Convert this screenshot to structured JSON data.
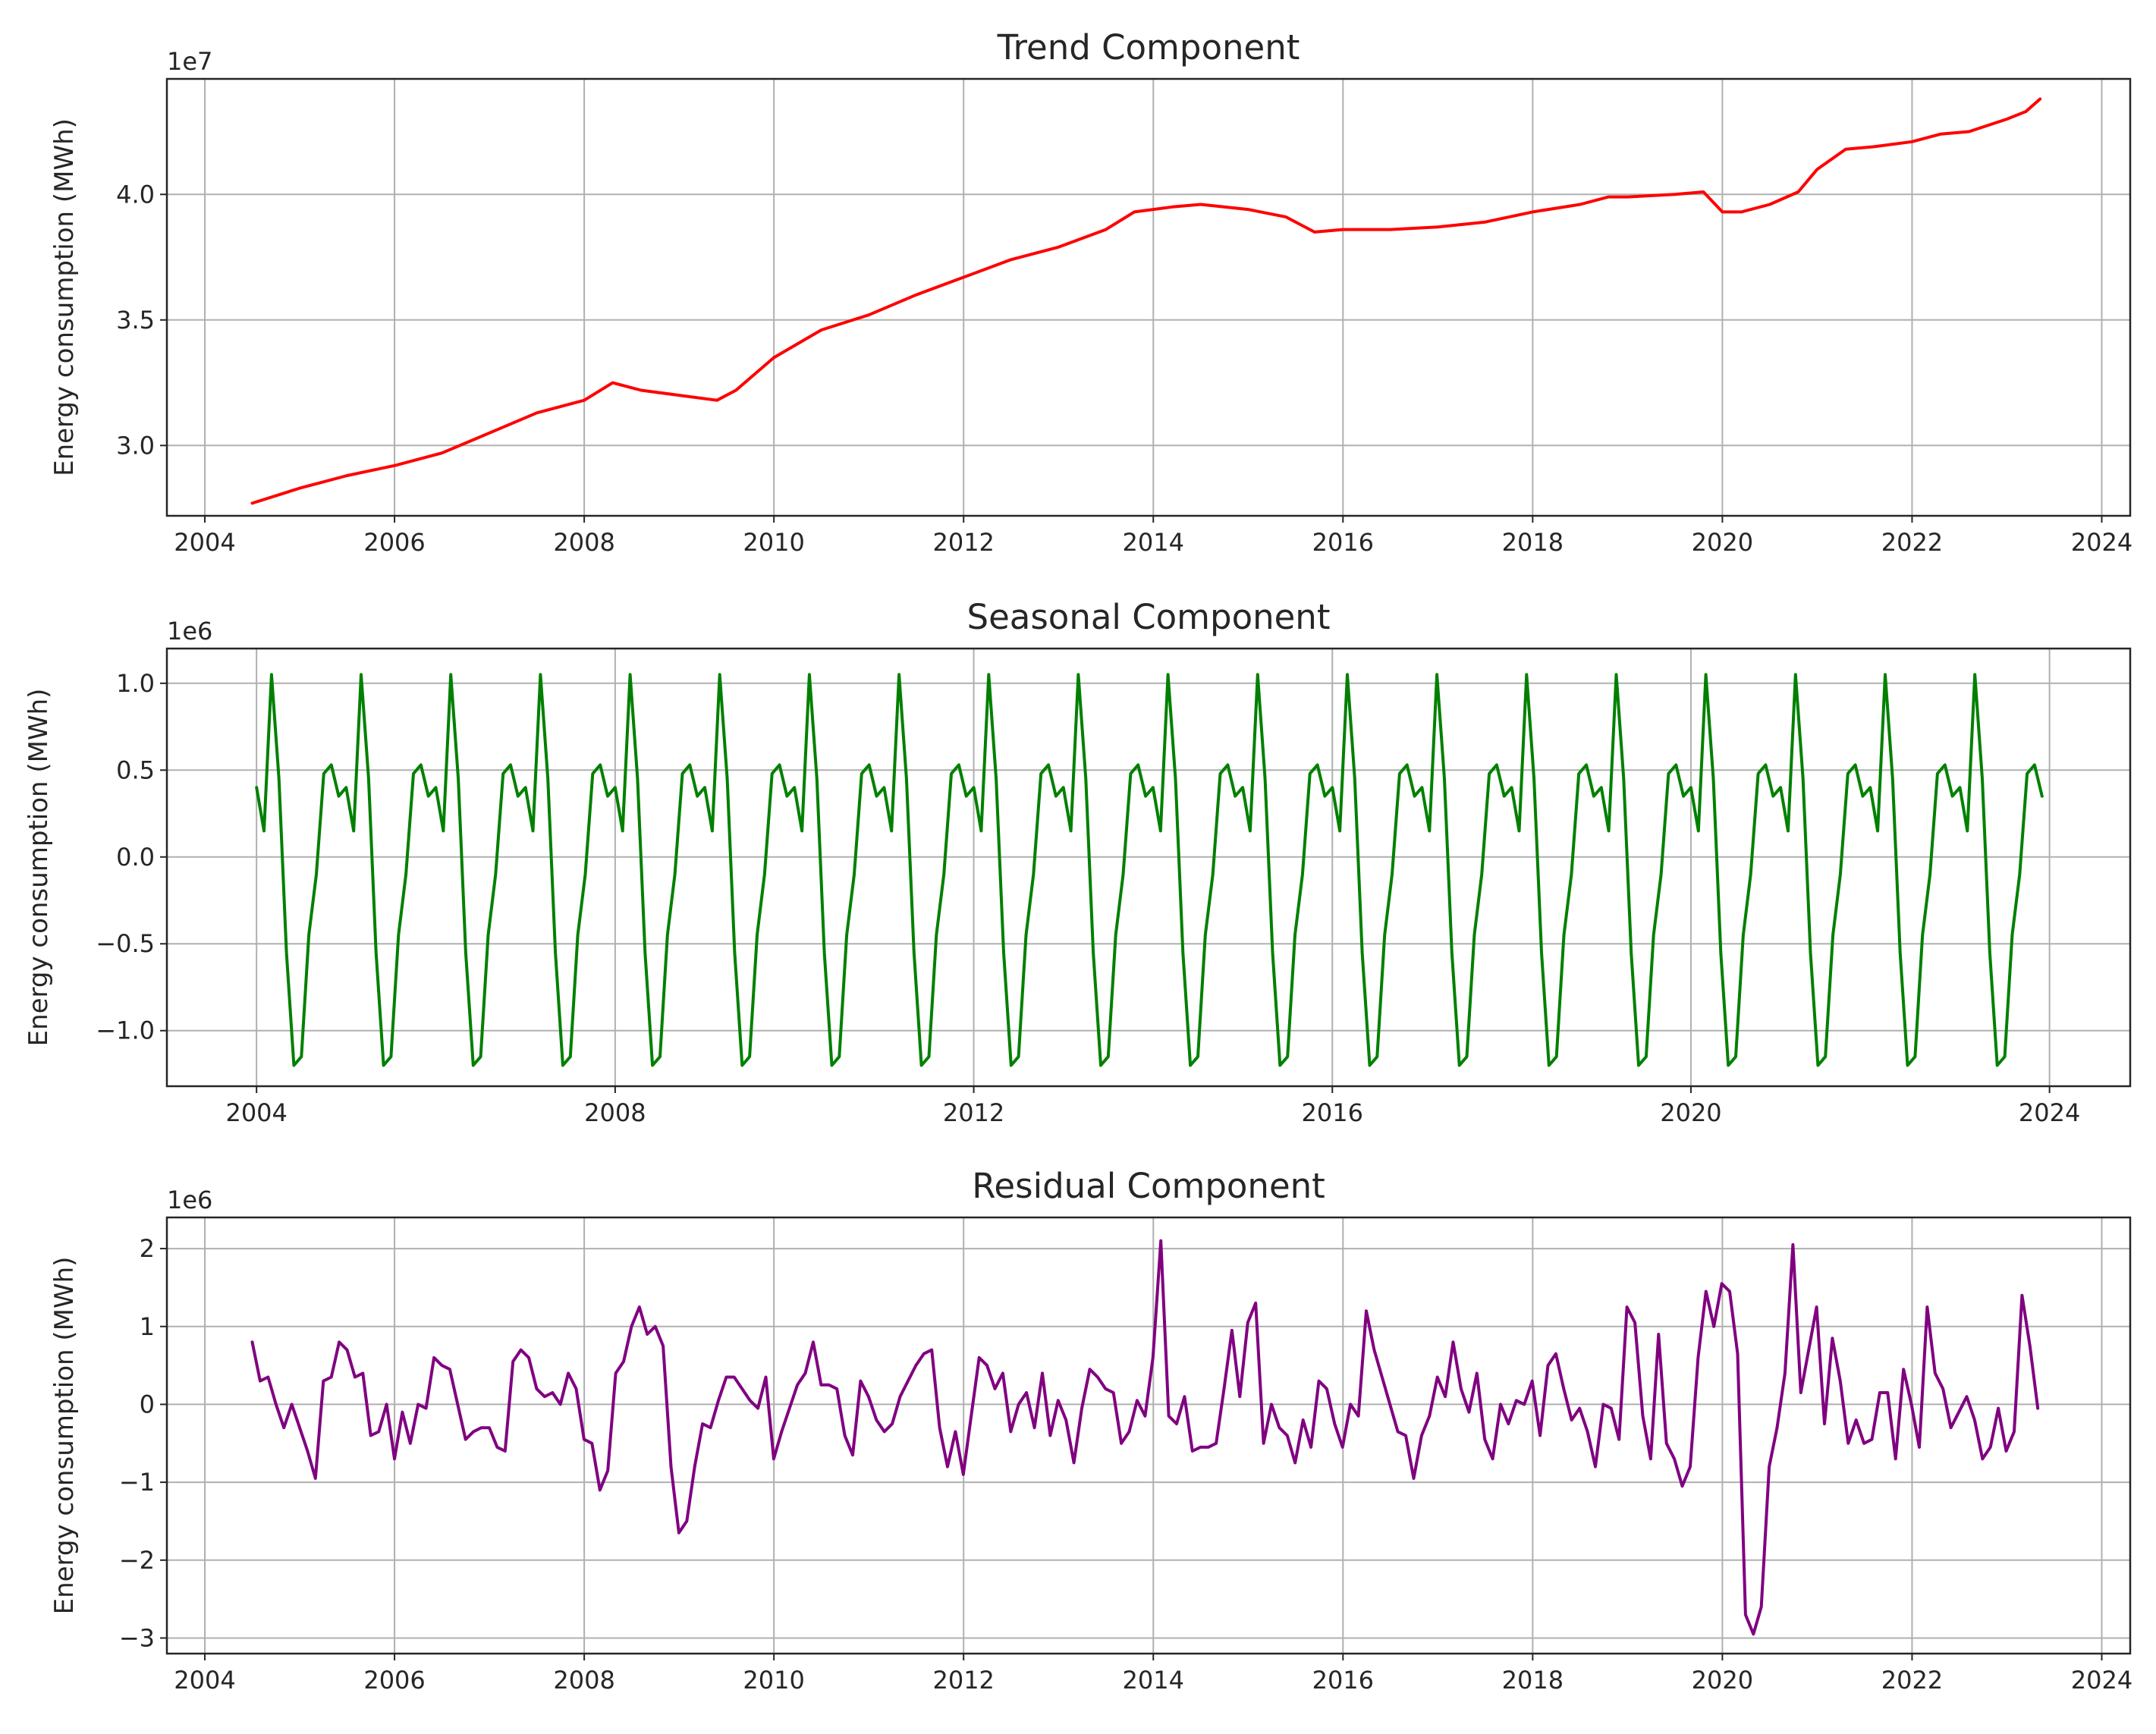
{
  "chart_data": [
    {
      "type": "line",
      "title": "Trend Component",
      "ylabel": "Energy consumption (MWh)",
      "y_offset_label": "1e7",
      "y_scale": 10000000,
      "color": "#ff0000",
      "grid": true,
      "xlim": [
        2003.6,
        2024.3
      ],
      "ylim": [
        2.72,
        4.46
      ],
      "xticks": [
        2004,
        2006,
        2008,
        2010,
        2012,
        2014,
        2016,
        2018,
        2020,
        2022,
        2024
      ],
      "xtick_labels": [
        "2004",
        "2006",
        "2008",
        "2010",
        "2012",
        "2014",
        "2016",
        "2018",
        "2020",
        "2022",
        "2024"
      ],
      "yticks": [
        3.0,
        3.5,
        4.0
      ],
      "ytick_labels": [
        "3.0",
        "3.5",
        "4.0"
      ],
      "x": [
        2004.5,
        2005.0,
        2005.5,
        2006.0,
        2006.5,
        2007.0,
        2007.5,
        2008.0,
        2008.3,
        2008.6,
        2009.0,
        2009.4,
        2009.6,
        2010.0,
        2010.5,
        2011.0,
        2011.5,
        2012.0,
        2012.5,
        2013.0,
        2013.5,
        2013.8,
        2014.2,
        2014.5,
        2015.0,
        2015.4,
        2015.7,
        2016.0,
        2016.5,
        2017.0,
        2017.5,
        2018.0,
        2018.5,
        2018.8,
        2019.0,
        2019.5,
        2019.8,
        2020.0,
        2020.2,
        2020.5,
        2020.8,
        2021.0,
        2021.3,
        2021.6,
        2022.0,
        2022.3,
        2022.6,
        2023.0,
        2023.2,
        2023.35
      ],
      "values": [
        2.77,
        2.83,
        2.88,
        2.92,
        2.97,
        3.05,
        3.13,
        3.18,
        3.25,
        3.22,
        3.2,
        3.18,
        3.22,
        3.35,
        3.46,
        3.52,
        3.6,
        3.67,
        3.74,
        3.79,
        3.86,
        3.93,
        3.95,
        3.96,
        3.94,
        3.91,
        3.85,
        3.86,
        3.86,
        3.87,
        3.89,
        3.93,
        3.96,
        3.99,
        3.99,
        4.0,
        4.01,
        3.93,
        3.93,
        3.96,
        4.01,
        4.1,
        4.18,
        4.19,
        4.21,
        4.24,
        4.25,
        4.3,
        4.33,
        4.38
      ]
    },
    {
      "type": "line",
      "title": "Seasonal Component",
      "ylabel": "Energy consumption (MWh)",
      "y_offset_label": "1e6",
      "y_scale": 1000000,
      "color": "#008000",
      "grid": true,
      "xlim": [
        2003.0,
        2024.9
      ],
      "ylim": [
        -1.32,
        1.2
      ],
      "xticks": [
        2004,
        2008,
        2012,
        2016,
        2020,
        2024
      ],
      "xtick_labels": [
        "2004",
        "2008",
        "2012",
        "2016",
        "2020",
        "2024"
      ],
      "yticks": [
        1.0,
        0.5,
        0.0,
        -0.5,
        -1.0
      ],
      "ytick_labels": [
        "1.0",
        "0.5",
        "0.0",
        "−0.5",
        "−1.0"
      ],
      "start_x": 2004.0,
      "period_values": [
        0.4,
        0.15,
        1.05,
        0.45,
        -0.55,
        -1.2,
        -1.15,
        -0.45,
        -0.1,
        0.48,
        0.53,
        0.35
      ],
      "cycles": 20,
      "period_years": 1
    },
    {
      "type": "line",
      "title": "Residual Component",
      "ylabel": "Energy consumption (MWh)",
      "y_offset_label": "1e6",
      "y_scale": 1000000,
      "color": "#800080",
      "grid": true,
      "xlim": [
        2003.6,
        2024.3
      ],
      "ylim": [
        -3.2,
        2.4
      ],
      "xticks": [
        2004,
        2006,
        2008,
        2010,
        2012,
        2014,
        2016,
        2018,
        2020,
        2022,
        2024
      ],
      "xtick_labels": [
        "2004",
        "2006",
        "2008",
        "2010",
        "2012",
        "2014",
        "2016",
        "2018",
        "2020",
        "2022",
        "2024"
      ],
      "yticks": [
        2,
        1,
        0,
        -1,
        -2,
        -3
      ],
      "ytick_labels": [
        "2",
        "1",
        "0",
        "−1",
        "−2",
        "−3"
      ],
      "start_x": 2004.5,
      "step": 0.0833,
      "values": [
        0.8,
        0.3,
        0.35,
        0.0,
        -0.3,
        0.0,
        -0.3,
        -0.6,
        -0.95,
        0.3,
        0.35,
        0.8,
        0.7,
        0.35,
        0.4,
        -0.4,
        -0.35,
        0.0,
        -0.7,
        -0.1,
        -0.5,
        0.0,
        -0.05,
        0.6,
        0.5,
        0.45,
        0.0,
        -0.45,
        -0.35,
        -0.3,
        -0.3,
        -0.55,
        -0.6,
        0.55,
        0.7,
        0.6,
        0.2,
        0.1,
        0.15,
        0.0,
        0.4,
        0.2,
        -0.45,
        -0.5,
        -1.1,
        -0.85,
        0.4,
        0.55,
        1.0,
        1.25,
        0.9,
        1.0,
        0.75,
        -0.8,
        -1.65,
        -1.5,
        -0.8,
        -0.25,
        -0.3,
        0.05,
        0.35,
        0.35,
        0.2,
        0.05,
        -0.05,
        0.35,
        -0.7,
        -0.35,
        -0.05,
        0.25,
        0.4,
        0.8,
        0.25,
        0.25,
        0.2,
        -0.4,
        -0.65,
        0.3,
        0.1,
        -0.2,
        -0.35,
        -0.25,
        0.1,
        0.3,
        0.5,
        0.65,
        0.7,
        -0.3,
        -0.8,
        -0.35,
        -0.9,
        -0.15,
        0.6,
        0.5,
        0.2,
        0.4,
        -0.35,
        0.0,
        0.15,
        -0.3,
        0.4,
        -0.4,
        0.05,
        -0.2,
        -0.75,
        -0.05,
        0.45,
        0.35,
        0.2,
        0.15,
        -0.5,
        -0.35,
        0.05,
        -0.15,
        0.6,
        2.1,
        -0.15,
        -0.25,
        0.1,
        -0.6,
        -0.55,
        -0.55,
        -0.5,
        0.2,
        0.95,
        0.1,
        1.05,
        1.3,
        -0.5,
        0.0,
        -0.3,
        -0.4,
        -0.75,
        -0.2,
        -0.55,
        0.3,
        0.2,
        -0.25,
        -0.55,
        0.0,
        -0.15,
        1.2,
        0.7,
        0.35,
        0.0,
        -0.35,
        -0.4,
        -0.95,
        -0.4,
        -0.15,
        0.35,
        0.1,
        0.8,
        0.2,
        -0.1,
        0.4,
        -0.45,
        -0.7,
        0.0,
        -0.25,
        0.05,
        0.0,
        0.3,
        -0.4,
        0.5,
        0.65,
        0.2,
        -0.2,
        -0.05,
        -0.35,
        -0.8,
        0.0,
        -0.05,
        -0.45,
        1.25,
        1.05,
        -0.15,
        -0.7,
        0.9,
        -0.5,
        -0.7,
        -1.05,
        -0.8,
        0.6,
        1.45,
        1.0,
        1.55,
        1.45,
        0.65,
        -2.7,
        -2.95,
        -2.6,
        -0.8,
        -0.3,
        0.4,
        2.05,
        0.15,
        0.7,
        1.25,
        -0.25,
        0.85,
        0.3,
        -0.5,
        -0.2,
        -0.5,
        -0.45,
        0.15,
        0.15,
        -0.7,
        0.45,
        0.0,
        -0.55,
        1.25,
        0.4,
        0.2,
        -0.3,
        -0.1,
        0.1,
        -0.2,
        -0.7,
        -0.55,
        -0.05,
        -0.6,
        -0.35,
        1.4,
        0.75,
        -0.05
      ]
    }
  ]
}
